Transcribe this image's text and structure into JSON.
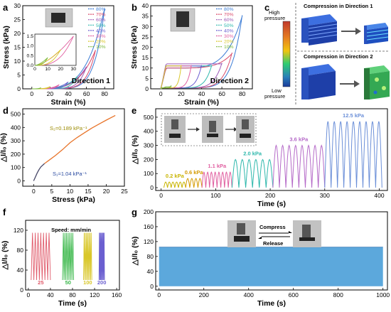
{
  "panel_letters": [
    "a",
    "b",
    "c",
    "d",
    "e",
    "f",
    "g"
  ],
  "panel_a": {
    "chart_data": {
      "type": "line",
      "xlabel": "Strain (%)",
      "ylabel": "Stress (kPa)",
      "xticks": [
        "0",
        "20",
        "40",
        "60",
        "80"
      ],
      "yticks": [
        "0",
        "5",
        "10",
        "15",
        "20",
        "25",
        "30"
      ],
      "xlim": [
        -10,
        90
      ],
      "ylim": [
        0,
        30
      ],
      "series": [
        {
          "name": "80%",
          "color": "#3a7bd5",
          "max_strain": 80,
          "max_stress": 29
        },
        {
          "name": "70%",
          "color": "#d94a6a",
          "max_strain": 70,
          "max_stress": 14
        },
        {
          "name": "60%",
          "color": "#9b59b6",
          "max_strain": 60,
          "max_stress": 8
        },
        {
          "name": "50%",
          "color": "#2eb8ac",
          "max_strain": 50,
          "max_stress": 4.5
        },
        {
          "name": "40%",
          "color": "#6b5fd0",
          "max_strain": 40,
          "max_stress": 2.5
        },
        {
          "name": "30%",
          "color": "#e05fa0",
          "max_strain": 30,
          "max_stress": 1.5
        },
        {
          "name": "20%",
          "color": "#d9c72a",
          "max_strain": 20,
          "max_stress": 0.8
        },
        {
          "name": "10%",
          "color": "#7ab83a",
          "max_strain": 10,
          "max_stress": 0.4
        }
      ],
      "annotation": "Direction 1",
      "inset": {
        "xticks": [
          "0",
          "10",
          "20",
          "30"
        ],
        "yticks": [
          "0.0",
          "0.5",
          "1.0",
          "1.5"
        ]
      }
    }
  },
  "panel_b": {
    "chart_data": {
      "type": "line",
      "xlabel": "Strain (%)",
      "ylabel": "Stress (kPa)",
      "xticks": [
        "0",
        "20",
        "40",
        "60",
        "80"
      ],
      "yticks": [
        "0",
        "5",
        "10",
        "15",
        "20",
        "25",
        "30",
        "35",
        "40"
      ],
      "xlim": [
        -10,
        90
      ],
      "ylim": [
        0,
        40
      ],
      "series": [
        {
          "name": "80%",
          "color": "#3a7bd5",
          "max_strain": 80,
          "max_stress": 35
        },
        {
          "name": "70%",
          "color": "#d94a6a",
          "max_strain": 70,
          "max_stress": 17
        },
        {
          "name": "60%",
          "color": "#9b59b6",
          "max_strain": 60,
          "max_stress": 12
        },
        {
          "name": "50%",
          "color": "#2eb8ac",
          "max_strain": 50,
          "max_stress": 11
        },
        {
          "name": "40%",
          "color": "#6b5fd0",
          "max_strain": 40,
          "max_stress": 11
        },
        {
          "name": "30%",
          "color": "#e05fa0",
          "max_strain": 30,
          "max_stress": 11
        },
        {
          "name": "20%",
          "color": "#d9c72a",
          "max_strain": 20,
          "max_stress": 11
        },
        {
          "name": "10%",
          "color": "#7ab83a",
          "max_strain": 10,
          "max_stress": 1
        }
      ],
      "annotation": "Direction 2"
    }
  },
  "panel_c": {
    "titles": [
      "Compression in Direction 1",
      "Compression in Direction 2"
    ],
    "scale_high": "High",
    "scale_high2": "pressure",
    "scale_low": "Low",
    "scale_low2": "pressure"
  },
  "panel_d": {
    "chart_data": {
      "type": "line",
      "xlabel": "Stress (kPa)",
      "ylabel": "△I/I₀ (%)",
      "xticks": [
        "0",
        "5",
        "10",
        "15",
        "20",
        "25"
      ],
      "yticks": [
        "0",
        "100",
        "200",
        "300",
        "400",
        "500"
      ],
      "xlim": [
        -3,
        25
      ],
      "ylim": [
        -40,
        540
      ],
      "x": [
        0,
        0.5,
        1,
        1.5,
        2,
        3,
        4,
        6,
        8,
        10,
        12,
        14,
        16,
        18,
        20,
        22.5
      ],
      "y": [
        0,
        30,
        60,
        85,
        105,
        130,
        150,
        190,
        235,
        285,
        325,
        360,
        395,
        425,
        455,
        490
      ],
      "annotations": [
        "S₂=0.189 kPa⁻¹",
        "S₁=1.04 kPa⁻¹"
      ]
    }
  },
  "panel_e": {
    "chart_data": {
      "type": "line",
      "xlabel": "Time (s)",
      "ylabel": "△I/I₀ (%)",
      "xticks": [
        "0",
        "100",
        "200",
        "300",
        "400"
      ],
      "yticks": [
        "0",
        "100",
        "200",
        "300",
        "400",
        "500"
      ],
      "xlim": [
        -10,
        415
      ],
      "ylim": [
        -20,
        560
      ],
      "segments": [
        {
          "label": "0.2 kPa",
          "color": "#c8b400",
          "t0": 5,
          "t1": 45,
          "peak": 40
        },
        {
          "label": "0.6 kPa",
          "color": "#d49a00",
          "t0": 45,
          "t1": 75,
          "peak": 65
        },
        {
          "label": "1.1 kPa",
          "color": "#e05fa0",
          "t0": 75,
          "t1": 130,
          "peak": 110
        },
        {
          "label": "2.0 kPa",
          "color": "#2eb8ac",
          "t0": 130,
          "t1": 205,
          "peak": 200
        },
        {
          "label": "3.6 kPa",
          "color": "#b56ac8",
          "t0": 205,
          "t1": 300,
          "peak": 300
        },
        {
          "label": "12.5 kPa",
          "color": "#6b8fd8",
          "t0": 300,
          "t1": 405,
          "peak": 470
        }
      ]
    }
  },
  "panel_f": {
    "chart_data": {
      "type": "line",
      "xlabel": "Time (s)",
      "ylabel": "△I/I₀ (%)",
      "xticks": [
        "0",
        "40",
        "80",
        "120",
        "160"
      ],
      "yticks": [
        "0",
        "40",
        "80",
        "120"
      ],
      "xlim": [
        -5,
        165
      ],
      "ylim": [
        0,
        140
      ],
      "annotation": "Speed: mm/min",
      "segments": [
        {
          "label": "25",
          "color": "#e05a6a",
          "t0": 5,
          "t1": 40
        },
        {
          "label": "50",
          "color": "#3ab84a",
          "t0": 62,
          "t1": 82
        },
        {
          "label": "100",
          "color": "#d9c72a",
          "t0": 100,
          "t1": 115
        },
        {
          "label": "200",
          "color": "#6b5fd0",
          "t0": 128,
          "t1": 138
        }
      ]
    }
  },
  "panel_g": {
    "chart_data": {
      "type": "area",
      "xlabel": "Time (s)",
      "ylabel": "△I/I₀ (%)",
      "xticks": [
        "0",
        "200",
        "400",
        "600",
        "800",
        "1000"
      ],
      "yticks": [
        "0",
        "40",
        "80",
        "120",
        "160",
        "200"
      ],
      "xlim": [
        -15,
        1020
      ],
      "ylim": [
        -10,
        200
      ],
      "amplitude": 105,
      "color": "#4a9fd8",
      "labels": [
        "Compress",
        "Release"
      ]
    }
  }
}
